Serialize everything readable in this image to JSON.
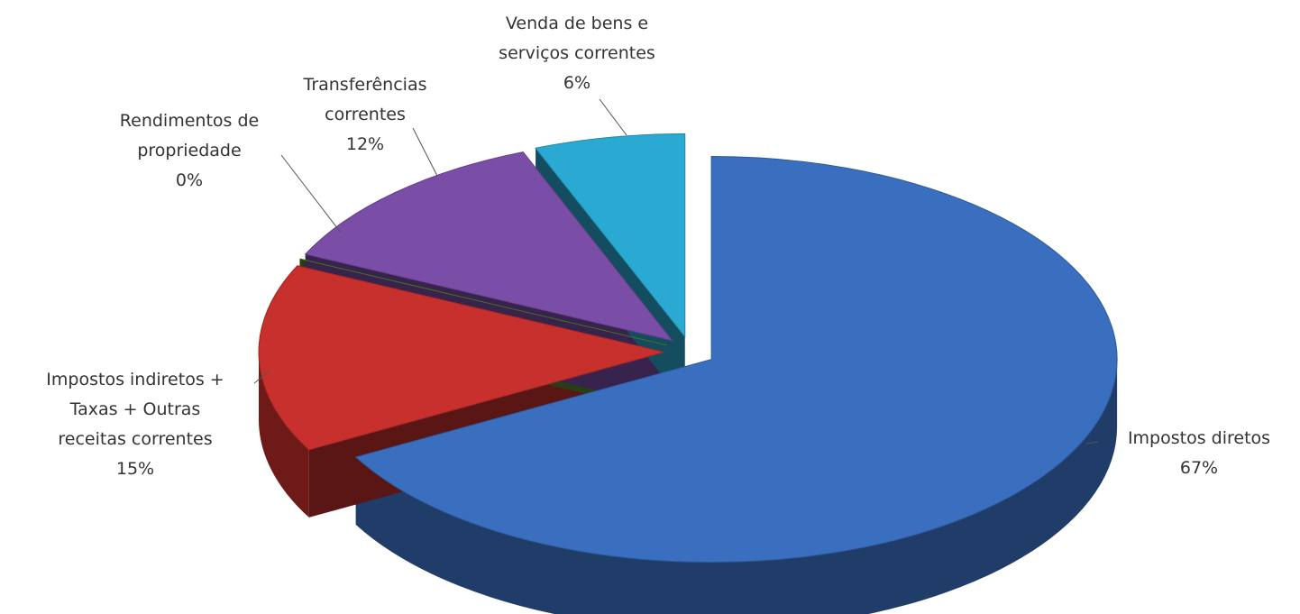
{
  "chart_data": {
    "type": "pie",
    "categories": [
      "Impostos diretos",
      "Impostos indiretos + Taxas + Outras receitas correntes",
      "Rendimentos de propriedade",
      "Transferências correntes",
      "Venda de bens e serviços correntes"
    ],
    "values": [
      67,
      15,
      0,
      12,
      6
    ],
    "value_labels": [
      "67%",
      "15%",
      "0%",
      "12%",
      "6%"
    ],
    "colors": [
      "#3a6fc0",
      "#c7302c",
      "#5a8a2c",
      "#7a4ea6",
      "#2aaad2"
    ]
  }
}
